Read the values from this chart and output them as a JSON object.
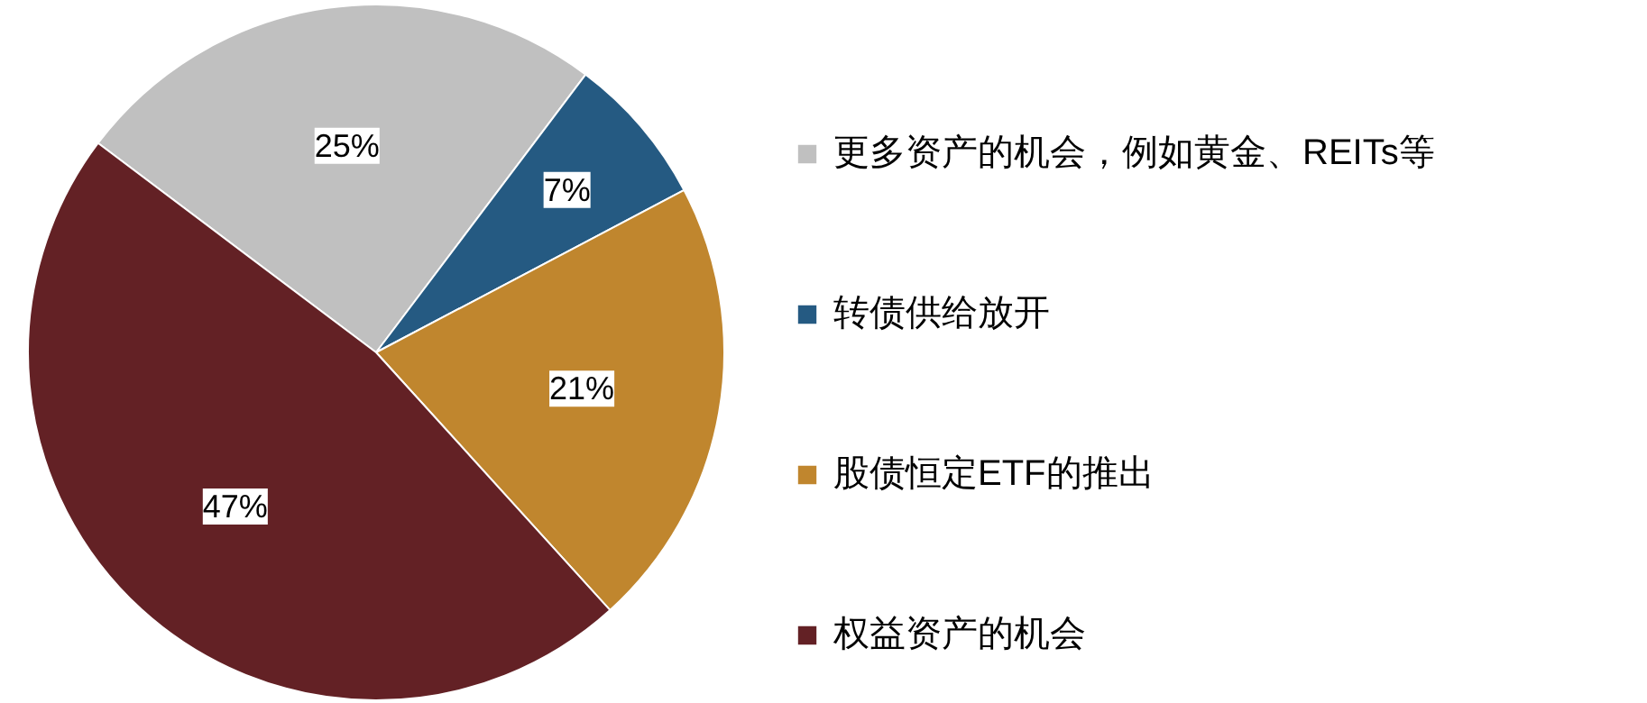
{
  "chart_data": {
    "type": "pie",
    "categories": [
      "更多资产的机会，例如黄金、REITs等",
      "转债供给放开",
      "股债恒定ETF的推出",
      "权益资产的机会"
    ],
    "values": [
      25,
      7,
      21,
      47
    ],
    "colors": [
      "#c0c0c0",
      "#255a82",
      "#c0862e",
      "#632125"
    ],
    "value_labels": [
      "25%",
      "7%",
      "21%",
      "47%"
    ],
    "legend": "right"
  }
}
